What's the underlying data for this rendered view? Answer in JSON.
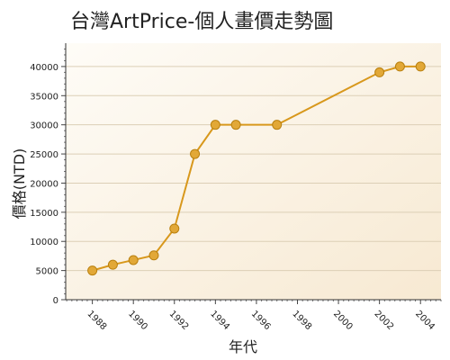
{
  "chart_data": {
    "type": "line",
    "title": "台灣ArtPrice-個人畫價走勢圖",
    "xlabel": "年代",
    "ylabel": "價格(NTD)",
    "xlim": [
      1986.7,
      2005
    ],
    "ylim": [
      0,
      44000
    ],
    "x_ticks": [
      1988,
      1990,
      1992,
      1994,
      1996,
      1998,
      2000,
      2002,
      2004
    ],
    "y_ticks": [
      0,
      5000,
      10000,
      15000,
      20000,
      25000,
      30000,
      35000,
      40000
    ],
    "grid": true,
    "legend": "none",
    "series": [
      {
        "x": [
          1988,
          1989,
          1990,
          1991,
          1992,
          1993,
          1994,
          1995,
          1997,
          2002,
          2003,
          2004
        ],
        "values": [
          5000,
          6000,
          6800,
          7600,
          12200,
          25000,
          30000,
          30000,
          30000,
          39000,
          40000,
          40000
        ]
      }
    ],
    "colors": {
      "line": "#d8981c",
      "marker_fill": "#e2a837",
      "marker_stroke": "#b9800f",
      "grid": "#dccfb6",
      "plot_bg_light": "#fefcf7",
      "plot_bg_dark": "#f7e9d2"
    }
  }
}
